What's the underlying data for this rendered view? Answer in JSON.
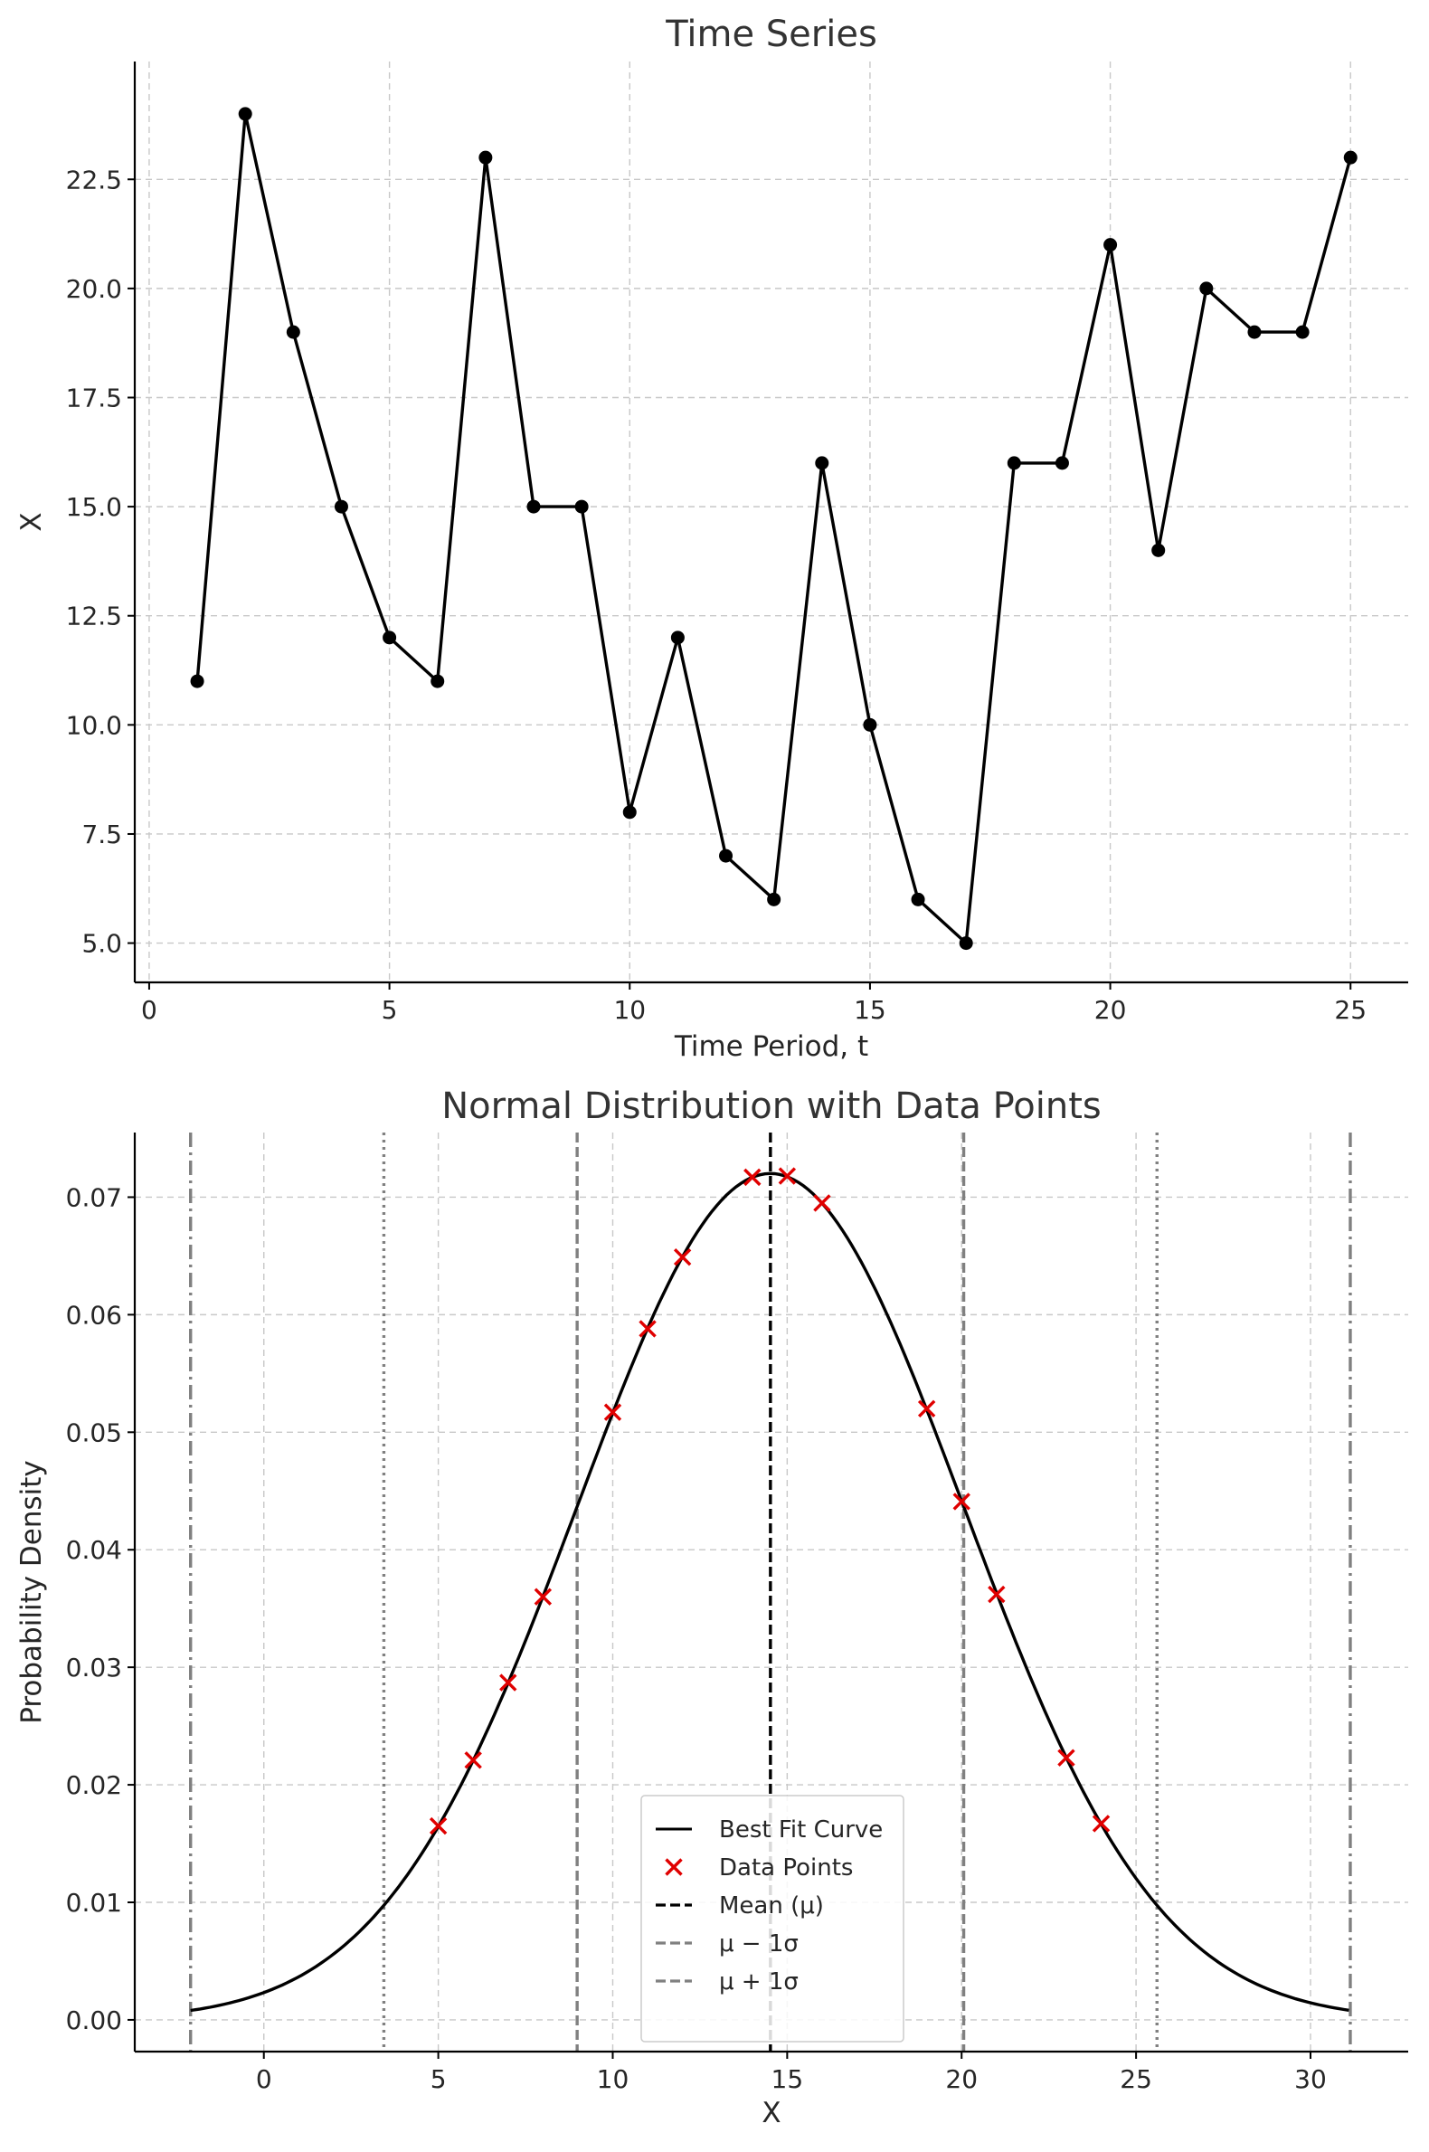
{
  "chart_data": [
    {
      "type": "line",
      "title": "Time Series",
      "xlabel": "Time Period, t",
      "ylabel": "X",
      "xlim": [
        -0.3,
        26.2
      ],
      "ylim": [
        4.1,
        25.2
      ],
      "xticks": [
        0,
        5,
        10,
        15,
        20,
        25
      ],
      "xtick_labels": [
        "0",
        "5",
        "10",
        "15",
        "20",
        "25"
      ],
      "yticks": [
        5.0,
        7.5,
        10.0,
        12.5,
        15.0,
        17.5,
        20.0,
        22.5
      ],
      "ytick_labels": [
        "5.0",
        "7.5",
        "10.0",
        "12.5",
        "15.0",
        "17.5",
        "20.0",
        "22.5"
      ],
      "grid": true,
      "series": [
        {
          "color": "#000000",
          "marker": "circle",
          "x": [
            1,
            2,
            3,
            4,
            5,
            6,
            7,
            8,
            9,
            10,
            11,
            12,
            13,
            14,
            15,
            16,
            17,
            18,
            19,
            20,
            21,
            22,
            23,
            24,
            25
          ],
          "y": [
            11,
            24,
            19,
            15,
            12,
            11,
            23,
            15,
            15,
            8,
            12,
            7,
            6,
            16,
            10,
            6,
            5,
            16,
            16,
            21,
            14,
            20,
            19,
            19,
            23
          ]
        }
      ]
    },
    {
      "type": "line",
      "title": "Normal Distribution with Data Points",
      "xlabel": "X",
      "ylabel": "Probability Density",
      "xlim": [
        -3.7,
        32.8
      ],
      "ylim": [
        -0.0027,
        0.0755
      ],
      "xticks": [
        0,
        5,
        10,
        15,
        20,
        25,
        30
      ],
      "xtick_labels": [
        "0",
        "5",
        "10",
        "15",
        "20",
        "25",
        "30"
      ],
      "yticks": [
        0.0,
        0.01,
        0.02,
        0.03,
        0.04,
        0.05,
        0.06,
        0.07
      ],
      "ytick_labels": [
        "0.00",
        "0.01",
        "0.02",
        "0.03",
        "0.04",
        "0.05",
        "0.06",
        "0.07"
      ],
      "grid": true,
      "legend_position": "lower-center",
      "curve": {
        "name": "Best Fit Curve",
        "color": "#000000",
        "mu": 14.52,
        "sigma": 5.54,
        "x_range": [
          -2.1,
          31.1
        ]
      },
      "points": {
        "name": "Data Points",
        "color": "#e00000",
        "marker": "x",
        "x": [
          5,
          6,
          7,
          8,
          10,
          11,
          12,
          14,
          15,
          16,
          19,
          20,
          21,
          23,
          24
        ],
        "y": [
          0.0165,
          0.0221,
          0.0287,
          0.036,
          0.0517,
          0.0588,
          0.0649,
          0.0717,
          0.0718,
          0.0695,
          0.052,
          0.0441,
          0.0362,
          0.0223,
          0.0167
        ]
      },
      "vlines": [
        {
          "name": "Mean (μ)",
          "x": 14.52,
          "color": "#000000",
          "style": "dashed",
          "in_legend": true
        },
        {
          "name": "μ − 1σ",
          "x": 8.98,
          "color": "#808080",
          "style": "dashed",
          "in_legend": true
        },
        {
          "name": "μ + 1σ",
          "x": 20.06,
          "color": "#808080",
          "style": "dashed",
          "in_legend": true
        },
        {
          "x": 3.44,
          "color": "#808080",
          "style": "dotted",
          "in_legend": false
        },
        {
          "x": 25.6,
          "color": "#808080",
          "style": "dotted",
          "in_legend": false
        },
        {
          "x": -2.1,
          "color": "#808080",
          "style": "dashdot",
          "in_legend": false
        },
        {
          "x": 31.14,
          "color": "#808080",
          "style": "dashdot",
          "in_legend": false
        }
      ]
    }
  ]
}
